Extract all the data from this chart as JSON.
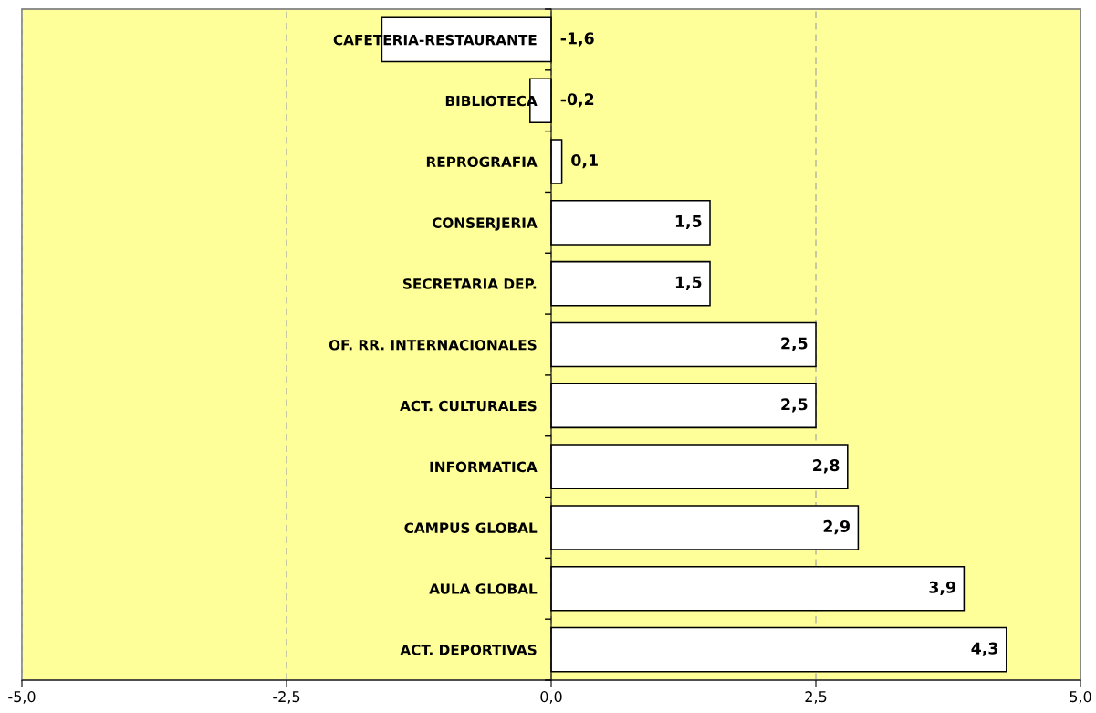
{
  "chart_data": {
    "type": "bar",
    "orientation": "horizontal",
    "categories": [
      "CAFETERIA-RESTAURANTE",
      "BIBLIOTECA",
      "REPROGRAFIA",
      "CONSERJERIA",
      "SECRETARIA DEP.",
      "OF. RR. INTERNACIONALES",
      "ACT. CULTURALES",
      "INFORMATICA",
      "CAMPUS GLOBAL",
      "AULA GLOBAL",
      "ACT. DEPORTIVAS"
    ],
    "values": [
      -1.6,
      -0.2,
      0.1,
      1.5,
      1.5,
      2.5,
      2.5,
      2.8,
      2.9,
      3.9,
      4.3
    ],
    "value_labels": [
      "-1,6",
      "-0,2",
      "0,1",
      "1,5",
      "1,5",
      "2,5",
      "2,5",
      "2,8",
      "2,9",
      "3,9",
      "4,3"
    ],
    "color": "#ffffff",
    "xlim": [
      -5,
      5
    ],
    "xticks": [
      {
        "value": -5,
        "label": "-5,0"
      },
      {
        "value": -2.5,
        "label": "-2,5"
      },
      {
        "value": 0,
        "label": "0,0"
      },
      {
        "value": 2.5,
        "label": "2,5"
      },
      {
        "value": 5,
        "label": "5,0"
      }
    ],
    "grid": "x"
  }
}
